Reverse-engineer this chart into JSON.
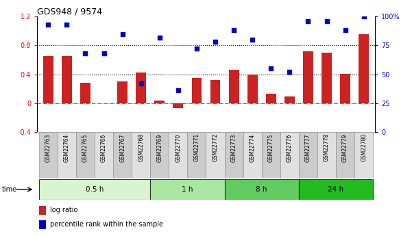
{
  "title": "GDS948 / 9574",
  "samples": [
    "GSM22763",
    "GSM22764",
    "GSM22765",
    "GSM22766",
    "GSM22767",
    "GSM22768",
    "GSM22769",
    "GSM22770",
    "GSM22771",
    "GSM22772",
    "GSM22773",
    "GSM22774",
    "GSM22775",
    "GSM22776",
    "GSM22777",
    "GSM22778",
    "GSM22779",
    "GSM22780"
  ],
  "log_ratio": [
    0.65,
    0.65,
    0.28,
    0.0,
    0.3,
    0.43,
    0.04,
    -0.07,
    0.35,
    0.32,
    0.46,
    0.4,
    0.13,
    0.09,
    0.72,
    0.7,
    0.41,
    0.96
  ],
  "percentile": [
    93,
    93,
    68,
    68,
    85,
    42,
    82,
    36,
    72,
    78,
    88,
    80,
    55,
    52,
    96,
    96,
    88,
    100
  ],
  "groups": [
    {
      "label": "0.5 h",
      "start": 0,
      "end": 6,
      "color": "#d8f5d0"
    },
    {
      "label": "1 h",
      "start": 6,
      "end": 10,
      "color": "#a8e8a0"
    },
    {
      "label": "8 h",
      "start": 10,
      "end": 14,
      "color": "#60cc60"
    },
    {
      "label": "24 h",
      "start": 14,
      "end": 18,
      "color": "#22bb22"
    }
  ],
  "bar_color": "#cc2222",
  "dot_color": "#0000cc",
  "ylim_left": [
    -0.4,
    1.2
  ],
  "ylim_right": [
    0,
    100
  ],
  "yticks_left": [
    -0.4,
    0.0,
    0.4,
    0.8,
    1.2
  ],
  "ytick_labels_left": [
    "-0.4",
    "0",
    "0.4",
    "0.8",
    "1.2"
  ],
  "yticks_right": [
    0,
    25,
    50,
    75,
    100
  ],
  "ytick_labels_right": [
    "0",
    "25",
    "50",
    "75",
    "100%"
  ],
  "hlines": [
    0.4,
    0.8
  ],
  "background_color": "#ffffff",
  "legend_log": "log ratio",
  "legend_pct": "percentile rank within the sample"
}
